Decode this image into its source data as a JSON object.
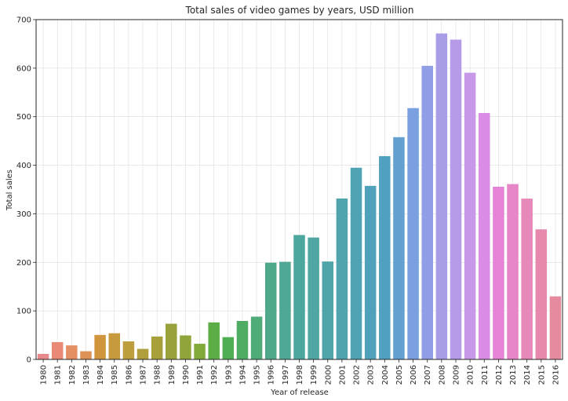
{
  "chart_data": {
    "type": "bar",
    "title": "Total sales of video games by years, USD million",
    "xlabel": "Year of release",
    "ylabel": "Total sales",
    "ylim": [
      0,
      700
    ],
    "yticks": [
      0,
      100,
      200,
      300,
      400,
      500,
      600,
      700
    ],
    "grid": true,
    "categories": [
      "1980",
      "1981",
      "1982",
      "1983",
      "1984",
      "1985",
      "1986",
      "1987",
      "1988",
      "1989",
      "1990",
      "1991",
      "1992",
      "1993",
      "1994",
      "1995",
      "1996",
      "1997",
      "1998",
      "1999",
      "2000",
      "2001",
      "2002",
      "2003",
      "2004",
      "2005",
      "2006",
      "2007",
      "2008",
      "2009",
      "2010",
      "2011",
      "2012",
      "2013",
      "2014",
      "2015",
      "2016"
    ],
    "values": [
      11.4,
      35.7,
      28.9,
      16.8,
      50.4,
      53.9,
      37.1,
      21.7,
      47.2,
      73.5,
      49.4,
      32.2,
      76.2,
      45.9,
      79.2,
      88.1,
      199.2,
      201.1,
      256.3,
      251.1,
      201.7,
      331.5,
      394.9,
      357.5,
      418.7,
      457.8,
      517.7,
      604.8,
      671.5,
      658.8,
      590.6,
      507.6,
      355.8,
      361.2,
      331.3,
      267.9,
      129.9
    ],
    "colors": [
      "#e8888a",
      "#e98a77",
      "#e58f65",
      "#dd9357",
      "#d1953d",
      "#c79a3d",
      "#bd9d3d",
      "#b09f3c",
      "#a8a13b",
      "#99a23a",
      "#8fa439",
      "#80a938",
      "#5cad46",
      "#4fae53",
      "#4fac64",
      "#4fab78",
      "#4fa88a",
      "#4fa795",
      "#4ea79e",
      "#4fa6a3",
      "#4fa5a9",
      "#4fa4ae",
      "#4fa3b3",
      "#4fa2ba",
      "#51a1c2",
      "#62a0d2",
      "#7aa0df",
      "#8f9ee5",
      "#a89ee8",
      "#b69be8",
      "#c797e8",
      "#db8ce5",
      "#e584d6",
      "#e686c6",
      "#e688b9",
      "#e689ac",
      "#e68a9e"
    ]
  }
}
